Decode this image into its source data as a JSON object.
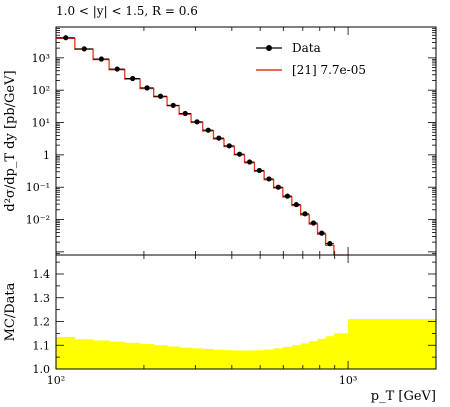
{
  "chart_data": [
    {
      "type": "line",
      "title": "1.0 < |y| < 1.5, R = 0.6",
      "ylabel": "d²σ/dp_T dy [pb/GeV]",
      "xlabel": "",
      "x_scale": "log",
      "y_scale": "log",
      "xlim": [
        100,
        2000
      ],
      "ylim": [
        0.0008,
        9000
      ],
      "legend_position": "top-right",
      "y_tick_labels": [
        {
          "value": 1000,
          "label": "10³"
        },
        {
          "value": 100,
          "label": "10²"
        },
        {
          "value": 10,
          "label": "10¹"
        },
        {
          "value": 1,
          "label": "1"
        },
        {
          "value": 0.1,
          "label": "10⁻¹"
        },
        {
          "value": 0.01,
          "label": "10⁻²"
        }
      ],
      "bin_edges": [
        100,
        116,
        134,
        152,
        172,
        194,
        216,
        240,
        264,
        290,
        318,
        346,
        376,
        408,
        442,
        478,
        516,
        556,
        598,
        642,
        688,
        736,
        786,
        838,
        894,
        1000
      ],
      "series": [
        {
          "name": "Data",
          "style": "points",
          "color": "#000000",
          "x": [
            108,
            125,
            143,
            162,
            183,
            205,
            228,
            252,
            277,
            304,
            332,
            361,
            392,
            425,
            460,
            497,
            536,
            577,
            620,
            665,
            712,
            761,
            812,
            866
          ],
          "y": [
            4200,
            1900,
            920,
            450,
            230,
            118,
            65,
            34,
            19,
            10.5,
            5.8,
            3.3,
            1.9,
            1.05,
            0.6,
            0.33,
            0.18,
            0.1,
            0.053,
            0.029,
            0.015,
            0.0078,
            0.0038,
            0.0018
          ]
        },
        {
          "name": "[21] 7.7e-05",
          "style": "step",
          "color": "#e8331f",
          "values": [
            4000,
            1850,
            880,
            430,
            220,
            112,
            62,
            33,
            18,
            10,
            5.5,
            3.1,
            1.8,
            1.0,
            0.57,
            0.31,
            0.17,
            0.095,
            0.05,
            0.027,
            0.014,
            0.0072,
            0.0035,
            0.0016,
            0.0008
          ]
        }
      ]
    },
    {
      "type": "area",
      "title": "",
      "ylabel": "MC/Data",
      "xlabel": "p_T [GeV]",
      "x_scale": "log",
      "xlim": [
        100,
        2000
      ],
      "ylim": [
        1.0,
        1.48
      ],
      "y_ticks": [
        1.0,
        1.1,
        1.2,
        1.3,
        1.4
      ],
      "x_tick_labels": [
        {
          "value": 100,
          "label": "10²"
        },
        {
          "value": 1000,
          "label": "10³"
        }
      ],
      "fill_color": "#ffff00",
      "bin_edges": [
        100,
        116,
        134,
        152,
        172,
        194,
        216,
        240,
        264,
        290,
        318,
        346,
        376,
        408,
        442,
        478,
        516,
        556,
        598,
        642,
        688,
        736,
        786,
        838,
        894,
        1000,
        2000
      ],
      "upper": [
        1.135,
        1.125,
        1.12,
        1.115,
        1.11,
        1.105,
        1.1,
        1.095,
        1.09,
        1.087,
        1.084,
        1.081,
        1.079,
        1.078,
        1.078,
        1.079,
        1.082,
        1.087,
        1.093,
        1.1,
        1.108,
        1.117,
        1.127,
        1.138,
        1.15,
        1.21
      ],
      "lower": [
        1.0,
        1.0,
        1.0,
        1.0,
        1.0,
        1.0,
        1.0,
        1.0,
        1.0,
        1.0,
        1.0,
        1.0,
        1.0,
        1.0,
        1.0,
        1.0,
        1.0,
        1.0,
        1.0,
        1.0,
        1.0,
        1.0,
        1.0,
        1.0,
        1.0,
        1.0
      ]
    }
  ]
}
